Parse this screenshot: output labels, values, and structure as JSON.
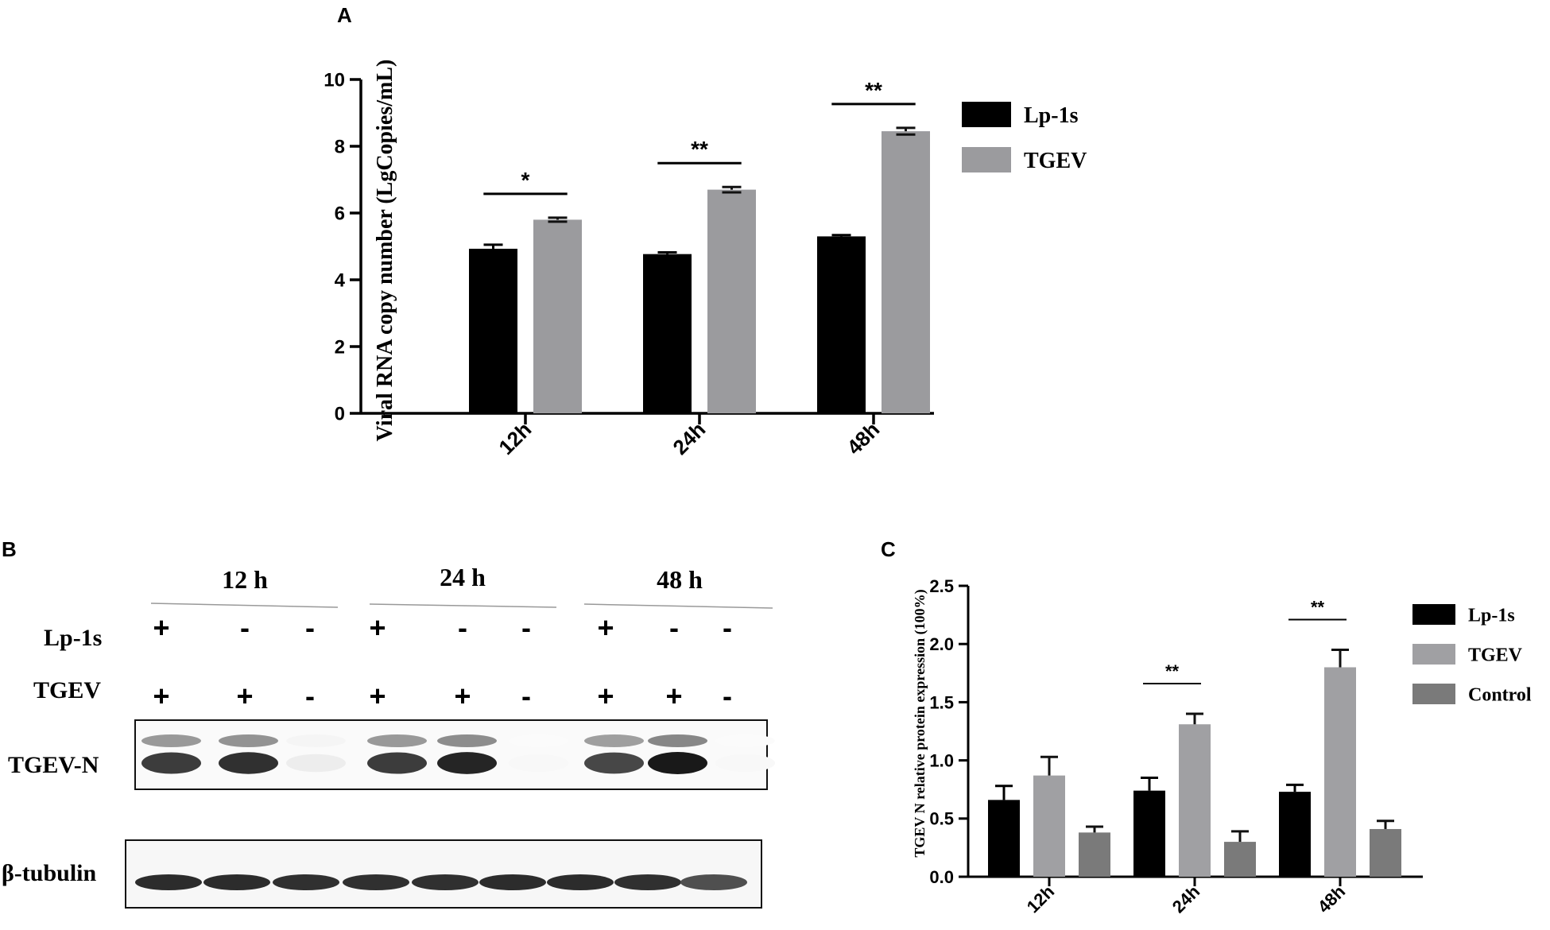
{
  "panels": {
    "a_label": "A",
    "b_label": "B",
    "c_label": "C"
  },
  "chart_data": [
    {
      "panel": "A",
      "type": "bar",
      "categories": [
        "12h",
        "24h",
        "48h"
      ],
      "series": [
        {
          "name": "Lp-1s",
          "values": [
            4.93,
            4.77,
            5.3
          ],
          "errors": [
            0.12,
            0.05,
            0.04
          ]
        },
        {
          "name": "TGEV",
          "values": [
            5.8,
            6.7,
            8.45
          ],
          "errors": [
            0.06,
            0.08,
            0.1
          ]
        }
      ],
      "ylabel": "Viral RNA copy number (LgCopies/mL)",
      "ylim": [
        0,
        10
      ],
      "yticks": [
        "0",
        "2",
        "4",
        "6",
        "8",
        "10"
      ],
      "significance": [
        "*",
        "**",
        "**"
      ],
      "legend": "right",
      "colors": {
        "Lp-1s": "#000000",
        "TGEV": "#9b9b9e"
      }
    },
    {
      "panel": "C",
      "type": "bar",
      "categories": [
        "12h",
        "24h",
        "48h"
      ],
      "series": [
        {
          "name": "Lp-1s",
          "values": [
            0.66,
            0.74,
            0.73
          ],
          "errors": [
            0.12,
            0.11,
            0.06
          ]
        },
        {
          "name": "TGEV",
          "values": [
            0.87,
            1.31,
            1.8
          ],
          "errors": [
            0.16,
            0.09,
            0.15
          ]
        },
        {
          "name": "Control",
          "values": [
            0.38,
            0.3,
            0.41
          ],
          "errors": [
            0.05,
            0.09,
            0.07
          ]
        }
      ],
      "ylabel": "TGEV N relative protein expression (100%)",
      "ylim": [
        0,
        2.5
      ],
      "yticks": [
        "0.0",
        "0.5",
        "1.0",
        "1.5",
        "2.0",
        "2.5"
      ],
      "significance": [
        "",
        "**",
        "**"
      ],
      "legend": "right",
      "colors": {
        "Lp-1s": "#000000",
        "TGEV": "#a0a0a3",
        "Control": "#7a7a7a"
      }
    }
  ],
  "blot": {
    "time_points": [
      "12 h",
      "24 h",
      "48 h"
    ],
    "row_labels": {
      "lp": "Lp-1s",
      "tgev": "TGEV",
      "n": "TGEV-N",
      "tubulin": "β-tubulin"
    },
    "lp_signs": [
      "+",
      "-",
      "-",
      "+",
      "-",
      "-",
      "+",
      "-",
      "-"
    ],
    "tgev_signs": [
      "+",
      "+",
      "-",
      "+",
      "+",
      "-",
      "+",
      "+",
      "-"
    ],
    "n_band_intensity": [
      0.85,
      0.9,
      0.08,
      0.85,
      0.95,
      0.03,
      0.8,
      1.0,
      0.03
    ],
    "tubulin_band_intensity": [
      0.9,
      0.9,
      0.88,
      0.88,
      0.88,
      0.9,
      0.9,
      0.88,
      0.75
    ]
  }
}
